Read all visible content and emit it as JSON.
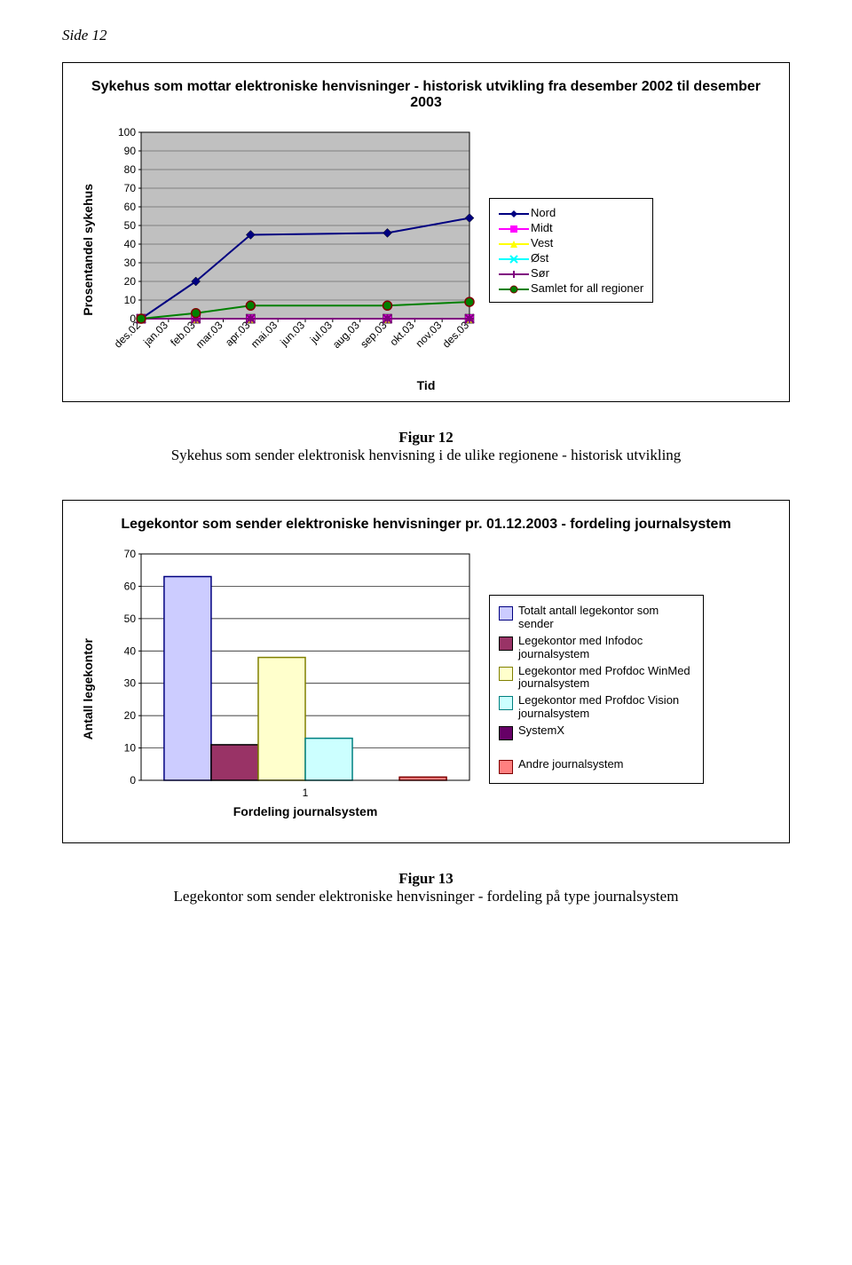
{
  "page_label": "Side 12",
  "chart1": {
    "type": "line",
    "title": "Sykehus som mottar elektroniske henvisninger - historisk utvikling fra desember 2002 til desember 2003",
    "ylabel": "Prosentandel sykehus",
    "xlabel": "Tid",
    "categories": [
      "des.02",
      "jan.03",
      "feb.03",
      "mar.03",
      "apr.03",
      "mai.03",
      "jun.03",
      "jul.03",
      "aug.03",
      "sep.03",
      "okt.03",
      "nov.03",
      "des.03"
    ],
    "ylim": [
      0,
      100
    ],
    "ytick_step": 10,
    "plot_background": "#c0c0c0",
    "grid_color": "#808080",
    "axis_color": "#000000",
    "series": [
      {
        "name": "Nord",
        "color": "#000080",
        "marker": "diamond",
        "values": [
          0,
          null,
          20,
          null,
          45,
          null,
          null,
          null,
          null,
          46,
          null,
          null,
          54
        ]
      },
      {
        "name": "Midt",
        "color": "#ff00ff",
        "marker": "square",
        "values": [
          0,
          null,
          0,
          null,
          0,
          null,
          null,
          null,
          null,
          0,
          null,
          null,
          0
        ]
      },
      {
        "name": "Vest",
        "color": "#ffff00",
        "marker": "triangle",
        "values": [
          0,
          null,
          0,
          null,
          0,
          null,
          null,
          null,
          null,
          0,
          null,
          null,
          0
        ]
      },
      {
        "name": "Øst",
        "color": "#00ffff",
        "marker": "x",
        "values": [
          null,
          null,
          null,
          null,
          null,
          null,
          null,
          null,
          null,
          null,
          null,
          null,
          null
        ]
      },
      {
        "name": "Sør",
        "color": "#800080",
        "marker": "asterisk",
        "values": [
          0,
          null,
          0,
          null,
          0,
          null,
          null,
          null,
          null,
          0,
          null,
          null,
          0
        ]
      },
      {
        "name": "Samlet for all regioner",
        "color": "#008000",
        "marker": "circle",
        "values": [
          0,
          null,
          3,
          null,
          7,
          null,
          null,
          null,
          null,
          7,
          null,
          null,
          9
        ]
      }
    ],
    "caption_label": "Figur 12",
    "caption_text": "Sykehus som sender elektronisk henvisning i de ulike regionene - historisk utvikling"
  },
  "chart2": {
    "type": "bar",
    "title": "Legekontor som sender elektroniske henvisninger pr. 01.12.2003 - fordeling journalsystem",
    "ylabel": "Antall legekontor",
    "xlabel": "Fordeling journalsystem",
    "x_tick_label": "1",
    "ylim": [
      0,
      70
    ],
    "ytick_step": 10,
    "plot_background": "#ffffff",
    "grid_color": "#000000",
    "axis_color": "#000000",
    "bars": [
      {
        "label": "Totalt antall legekontor som sender",
        "value": 63,
        "fill": "#ccccff",
        "border": "#000080"
      },
      {
        "label": "Legekontor med Infodoc journalsystem",
        "value": 11,
        "fill": "#993366",
        "border": "#000000"
      },
      {
        "label": "Legekontor med Profdoc WinMed journalsystem",
        "value": 38,
        "fill": "#ffffcc",
        "border": "#808000"
      },
      {
        "label": "Legekontor med Profdoc Vision journalsystem",
        "value": 13,
        "fill": "#ccffff",
        "border": "#008080"
      },
      {
        "label": "SystemX",
        "value": 0,
        "fill": "#660066",
        "border": "#000000"
      },
      {
        "label": "Andre journalsystem",
        "value": 1,
        "fill": "#ff8080",
        "border": "#800000"
      }
    ],
    "caption_label": "Figur 13",
    "caption_text": "Legekontor som sender elektroniske henvisninger - fordeling på type journalsystem"
  }
}
